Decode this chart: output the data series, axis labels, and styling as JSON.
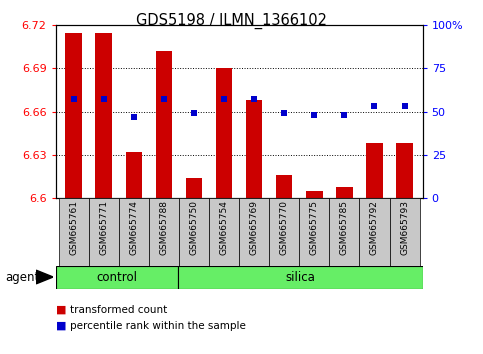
{
  "title": "GDS5198 / ILMN_1366102",
  "samples": [
    "GSM665761",
    "GSM665771",
    "GSM665774",
    "GSM665788",
    "GSM665750",
    "GSM665754",
    "GSM665769",
    "GSM665770",
    "GSM665775",
    "GSM665785",
    "GSM665792",
    "GSM665793"
  ],
  "n_control": 4,
  "bar_values": [
    6.714,
    6.714,
    6.632,
    6.702,
    6.614,
    6.69,
    6.668,
    6.616,
    6.605,
    6.608,
    6.638,
    6.638
  ],
  "bar_base": 6.6,
  "blue_values": [
    57,
    57,
    47,
    57,
    49,
    57,
    57,
    49,
    48,
    48,
    53,
    53
  ],
  "ylim_left": [
    6.6,
    6.72
  ],
  "ylim_right": [
    0,
    100
  ],
  "yticks_left": [
    6.6,
    6.63,
    6.66,
    6.69,
    6.72
  ],
  "yticks_right": [
    0,
    25,
    50,
    75,
    100
  ],
  "ytick_labels_right": [
    "0",
    "25",
    "50",
    "75",
    "100%"
  ],
  "bar_color": "#cc0000",
  "blue_color": "#0000cc",
  "bg_color": "#ffffff",
  "tick_label_bg": "#c8c8c8",
  "green_bg": "#66ee66",
  "legend_items": [
    "transformed count",
    "percentile rank within the sample"
  ]
}
